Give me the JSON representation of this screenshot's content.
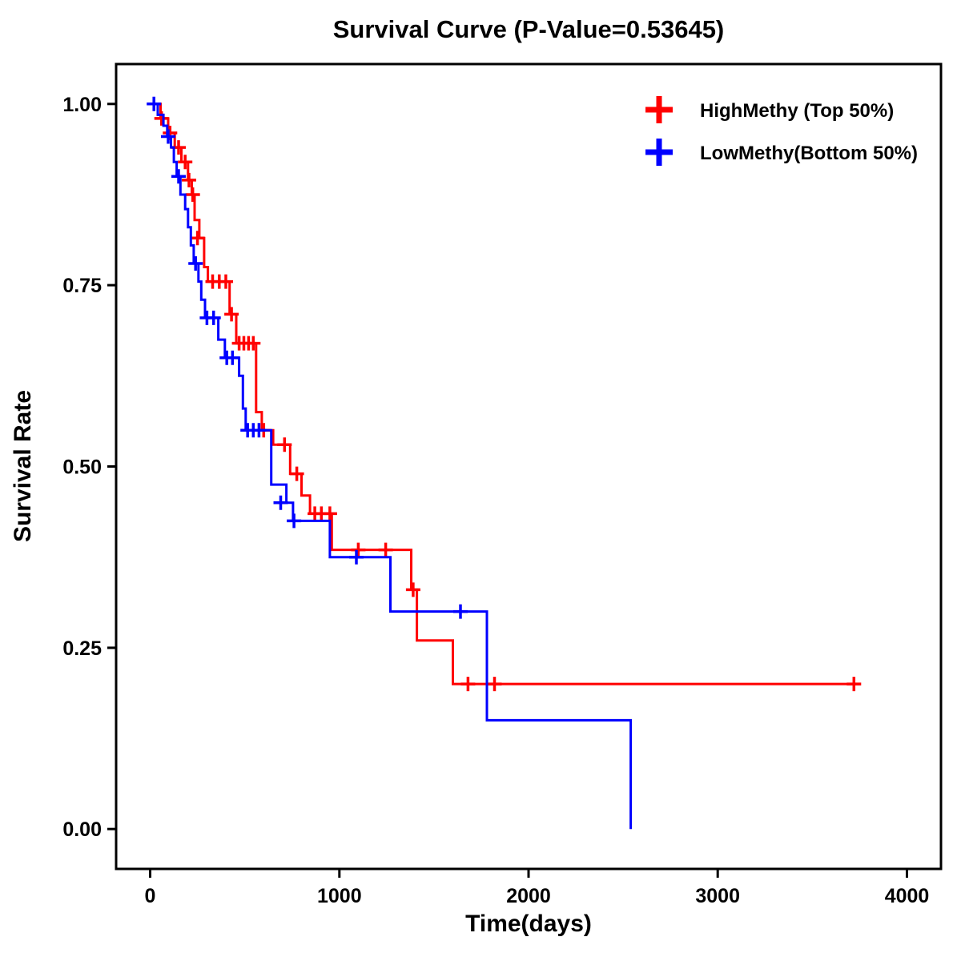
{
  "title": "Survival Curve (P-Value=0.53645)",
  "p_value": "0.53645",
  "axes": {
    "x_label": "Time(days)",
    "y_label": "Survival Rate",
    "x_ticks": [
      0,
      1000,
      2000,
      3000,
      4000
    ],
    "x_tick_labels": [
      "0",
      "1000",
      "2000",
      "3000",
      "4000"
    ],
    "y_ticks": [
      0.0,
      0.25,
      0.5,
      0.75,
      1.0
    ],
    "y_tick_labels": [
      "0.00",
      "0.25",
      "0.50",
      "0.75",
      "1.00"
    ]
  },
  "legend": [
    {
      "label": "HighMethy (Top 50%)",
      "color": "#ff0000"
    },
    {
      "label": "LowMethy(Bottom 50%)",
      "color": "#0000ff"
    }
  ],
  "chart_data": {
    "type": "line",
    "subtype": "kaplan_meier_step",
    "title": "Survival Curve (P-Value=0.53645)",
    "xlabel": "Time(days)",
    "ylabel": "Survival Rate",
    "xlim": [
      0,
      4000
    ],
    "ylim": [
      0.0,
      1.0
    ],
    "grid": false,
    "legend_position": "top-right",
    "series": [
      {
        "name": "HighMethy (Top 50%)",
        "color": "#ff0000",
        "steps": [
          [
            0,
            1.0
          ],
          [
            55,
            0.98
          ],
          [
            95,
            0.96
          ],
          [
            130,
            0.94
          ],
          [
            165,
            0.92
          ],
          [
            200,
            0.895
          ],
          [
            220,
            0.875
          ],
          [
            235,
            0.84
          ],
          [
            260,
            0.815
          ],
          [
            285,
            0.775
          ],
          [
            305,
            0.755
          ],
          [
            420,
            0.71
          ],
          [
            455,
            0.67
          ],
          [
            560,
            0.575
          ],
          [
            590,
            0.55
          ],
          [
            650,
            0.53
          ],
          [
            740,
            0.49
          ],
          [
            800,
            0.46
          ],
          [
            845,
            0.435
          ],
          [
            960,
            0.385
          ],
          [
            1380,
            0.33
          ],
          [
            1410,
            0.26
          ],
          [
            1600,
            0.2
          ],
          [
            3720,
            0.2
          ]
        ],
        "censors": [
          [
            60,
            0.98
          ],
          [
            105,
            0.96
          ],
          [
            150,
            0.94
          ],
          [
            185,
            0.92
          ],
          [
            205,
            0.895
          ],
          [
            225,
            0.875
          ],
          [
            250,
            0.815
          ],
          [
            330,
            0.755
          ],
          [
            365,
            0.755
          ],
          [
            400,
            0.755
          ],
          [
            430,
            0.71
          ],
          [
            470,
            0.67
          ],
          [
            495,
            0.67
          ],
          [
            520,
            0.67
          ],
          [
            545,
            0.67
          ],
          [
            600,
            0.55
          ],
          [
            710,
            0.53
          ],
          [
            775,
            0.49
          ],
          [
            870,
            0.435
          ],
          [
            905,
            0.435
          ],
          [
            950,
            0.435
          ],
          [
            1100,
            0.385
          ],
          [
            1245,
            0.385
          ],
          [
            1390,
            0.33
          ],
          [
            1680,
            0.2
          ],
          [
            1820,
            0.2
          ],
          [
            3720,
            0.2
          ]
        ]
      },
      {
        "name": "LowMethy(Bottom 50%)",
        "color": "#0000ff",
        "steps": [
          [
            0,
            1.0
          ],
          [
            40,
            0.985
          ],
          [
            70,
            0.97
          ],
          [
            90,
            0.955
          ],
          [
            110,
            0.94
          ],
          [
            125,
            0.92
          ],
          [
            140,
            0.9
          ],
          [
            160,
            0.875
          ],
          [
            185,
            0.855
          ],
          [
            200,
            0.83
          ],
          [
            215,
            0.805
          ],
          [
            230,
            0.78
          ],
          [
            255,
            0.755
          ],
          [
            270,
            0.73
          ],
          [
            290,
            0.705
          ],
          [
            360,
            0.675
          ],
          [
            395,
            0.65
          ],
          [
            470,
            0.625
          ],
          [
            490,
            0.58
          ],
          [
            505,
            0.55
          ],
          [
            640,
            0.475
          ],
          [
            720,
            0.45
          ],
          [
            755,
            0.425
          ],
          [
            950,
            0.375
          ],
          [
            1270,
            0.3
          ],
          [
            1780,
            0.15
          ],
          [
            2540,
            0.0
          ]
        ],
        "censors": [
          [
            20,
            1.0
          ],
          [
            95,
            0.955
          ],
          [
            150,
            0.9
          ],
          [
            240,
            0.78
          ],
          [
            300,
            0.705
          ],
          [
            335,
            0.705
          ],
          [
            405,
            0.65
          ],
          [
            435,
            0.65
          ],
          [
            515,
            0.55
          ],
          [
            545,
            0.55
          ],
          [
            575,
            0.55
          ],
          [
            690,
            0.45
          ],
          [
            760,
            0.425
          ],
          [
            1090,
            0.375
          ],
          [
            1640,
            0.3
          ]
        ]
      }
    ]
  }
}
